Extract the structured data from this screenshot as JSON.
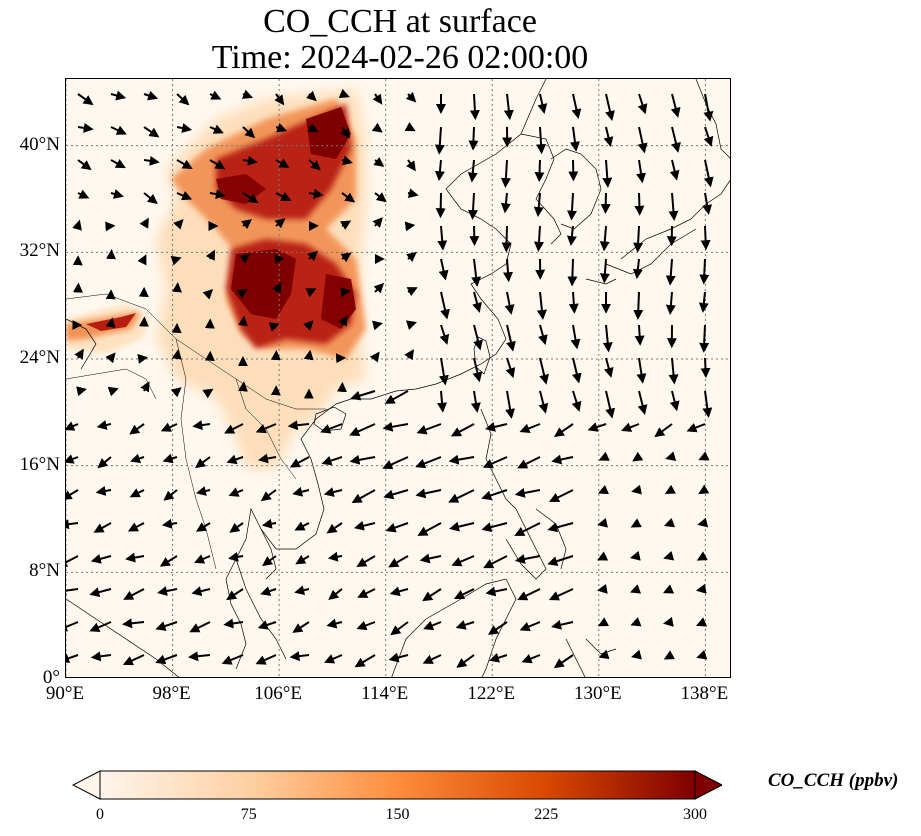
{
  "title": {
    "line1": "CO_CCH at surface",
    "line2": "Time: 2024-02-26 02:00:00"
  },
  "map": {
    "lon_range": [
      90,
      140
    ],
    "lat_range": [
      0,
      45
    ],
    "lon_ticks": [
      "90°E",
      "98°E",
      "106°E",
      "114°E",
      "122°E",
      "130°E",
      "138°E"
    ],
    "lon_tick_values": [
      90,
      98,
      106,
      114,
      122,
      130,
      138
    ],
    "lat_ticks": [
      "0°",
      "8°N",
      "16°N",
      "24°N",
      "32°N",
      "40°N"
    ],
    "lat_tick_values": [
      0,
      8,
      16,
      24,
      32,
      40
    ],
    "grid": "dotted",
    "background_color": "#fff8ef",
    "plume_colors": {
      "light": "#fdd8ad",
      "mid": "#f08a4b",
      "dark": "#b3170f",
      "darkest": "#7f0000"
    },
    "wind_vectors": true
  },
  "colorbar": {
    "label": "CO_CCH (ppbv)",
    "ticks": [
      "0",
      "75",
      "150",
      "225",
      "300"
    ],
    "tick_values": [
      0,
      75,
      150,
      225,
      300
    ],
    "extend": "both",
    "colors": [
      "#fff5eb",
      "#fdd0a2",
      "#fd8d3c",
      "#d94801",
      "#7f0000"
    ]
  }
}
